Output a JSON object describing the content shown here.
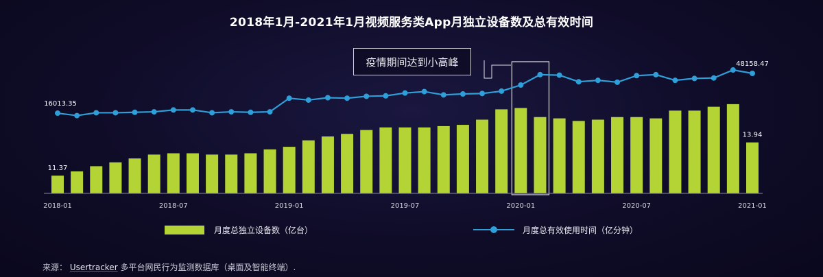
{
  "title": "2018年1月-2021年1月视频服务类App月独立设备数及总有效时间",
  "annotation": "疫情期间达到小高峰",
  "legend": {
    "bar_label": "月度总独立设备数（亿台）",
    "line_label": "月度总有效使用时间（亿分钟）"
  },
  "source": {
    "prefix": "来源：",
    "name": "Usertracker",
    "rest": "多平台网民行为监测数据库（桌面及智能终端）."
  },
  "colors": {
    "bar": "#b4d334",
    "line": "#2e9fd9",
    "axis": "#8a8aa0",
    "highlight_box": "#e0e0e8"
  },
  "chart_data": {
    "type": "bar",
    "categories": [
      "2018-01",
      "2018-02",
      "2018-03",
      "2018-04",
      "2018-05",
      "2018-06",
      "2018-07",
      "2018-08",
      "2018-09",
      "2018-10",
      "2018-11",
      "2018-12",
      "2019-01",
      "2019-02",
      "2019-03",
      "2019-04",
      "2019-05",
      "2019-06",
      "2019-07",
      "2019-08",
      "2019-09",
      "2019-10",
      "2019-11",
      "2019-12",
      "2020-01",
      "2020-02",
      "2020-03",
      "2020-04",
      "2020-05",
      "2020-06",
      "2020-07",
      "2020-08",
      "2020-09",
      "2020-10",
      "2020-11",
      "2020-12",
      "2021-01"
    ],
    "x_tick_labels": [
      "2018-01",
      "2018-07",
      "2019-01",
      "2019-07",
      "2020-01",
      "2020-07",
      "2021-01"
    ],
    "x_tick_indices": [
      0,
      6,
      12,
      18,
      24,
      30,
      36
    ],
    "series": [
      {
        "name": "月度总独立设备数（亿台）",
        "type": "bar",
        "values": [
          11.37,
          11.7,
          12.1,
          12.4,
          12.7,
          13.0,
          13.1,
          13.1,
          13.0,
          13.0,
          13.1,
          13.4,
          13.6,
          14.1,
          14.4,
          14.6,
          14.9,
          15.1,
          15.1,
          15.1,
          15.2,
          15.3,
          15.7,
          16.5,
          16.6,
          15.9,
          15.8,
          15.6,
          15.7,
          15.9,
          15.9,
          15.8,
          16.4,
          16.4,
          16.7,
          16.9,
          13.94
        ],
        "value_labels": {
          "0": "11.37",
          "36": "13.94"
        }
      },
      {
        "name": "月度总有效使用时间（亿分钟）",
        "type": "line",
        "values": [
          16013.35,
          15500,
          16100,
          16100,
          16200,
          16300,
          16700,
          16700,
          16100,
          16300,
          16200,
          16300,
          19200,
          18800,
          19300,
          19200,
          19600,
          19700,
          20300,
          20600,
          19900,
          20100,
          20200,
          20700,
          22000,
          24200,
          24100,
          22700,
          23000,
          22600,
          24000,
          24200,
          23000,
          23400,
          23500,
          25200,
          48158.47
        ],
        "value_labels": {
          "0": "16013.35",
          "36": "48158.47"
        }
      }
    ],
    "highlight_range": [
      "2020-01",
      "2020-02"
    ],
    "legend_position": "bottom",
    "grid": false,
    "xlabel": "",
    "ylabel": ""
  }
}
